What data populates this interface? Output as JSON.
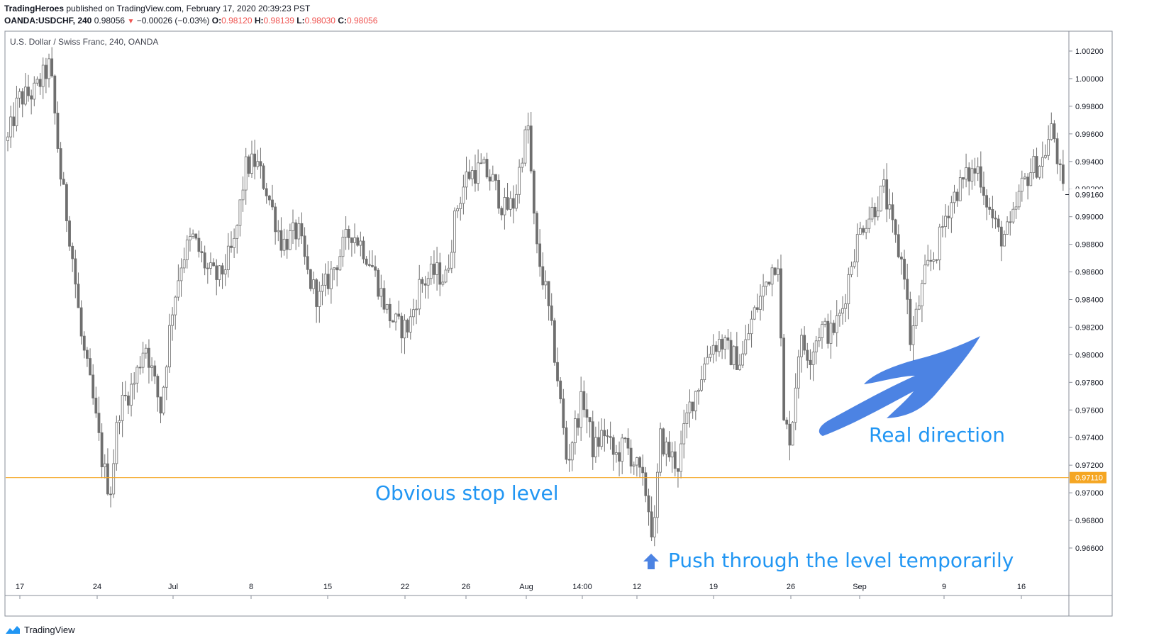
{
  "header": {
    "publisher": "TradingHeroes",
    "published_text": "published on TradingView.com, February 17, 2020 20:39:23 PST",
    "symbol": "OANDA:USDCHF, 240",
    "last": "0.98056",
    "change": "−0.00026 (−0.03%)",
    "o_label": "O:",
    "o_value": "0.98120",
    "h_label": "H:",
    "h_value": "0.98139",
    "l_label": "L:",
    "l_value": "0.98030",
    "c_label": "C:",
    "c_value": "0.98056"
  },
  "symbol_title": "U.S. Dollar / Swiss Franc, 240, OANDA",
  "footer": {
    "brand": "TradingView"
  },
  "colors": {
    "candle": "#6f6f6f",
    "stop_line": "#f5a623",
    "annotation": "#2196f3",
    "arrow": "#4c83e3",
    "current_price_bg": "#ffffff",
    "stop_label_bg": "#f5a623"
  },
  "chart_data": {
    "type": "candlestick",
    "title": "U.S. Dollar / Swiss Franc, 240, OANDA",
    "ylim": [
      0.965,
      1.003
    ],
    "y_ticks": [
      "1.00200",
      "1.00000",
      "0.99800",
      "0.99600",
      "0.99400",
      "0.99200",
      "0.99000",
      "0.98800",
      "0.98600",
      "0.98400",
      "0.98200",
      "0.98000",
      "0.97800",
      "0.97600",
      "0.97400",
      "0.97200",
      "0.97000",
      "0.96800",
      "0.96600"
    ],
    "x_ticks": [
      "17",
      "24",
      "Jul",
      "8",
      "15",
      "22",
      "26",
      "Aug",
      "14:00",
      "12",
      "19",
      "26",
      "Sep",
      "9",
      "16"
    ],
    "current_price": "0.99160",
    "stop_level": "0.97110",
    "approx_path_close": [
      [
        0,
        0.9955
      ],
      [
        0.01,
        0.9985
      ],
      [
        0.025,
        0.999
      ],
      [
        0.04,
        1.001
      ],
      [
        0.05,
        0.993
      ],
      [
        0.06,
        0.988
      ],
      [
        0.07,
        0.981
      ],
      [
        0.08,
        0.977
      ],
      [
        0.09,
        0.972
      ],
      [
        0.097,
        0.97
      ],
      [
        0.105,
        0.976
      ],
      [
        0.12,
        0.978
      ],
      [
        0.13,
        0.981
      ],
      [
        0.145,
        0.976
      ],
      [
        0.155,
        0.983
      ],
      [
        0.165,
        0.987
      ],
      [
        0.175,
        0.9885
      ],
      [
        0.19,
        0.986
      ],
      [
        0.2,
        0.9855
      ],
      [
        0.215,
        0.988
      ],
      [
        0.225,
        0.9935
      ],
      [
        0.235,
        0.994
      ],
      [
        0.245,
        0.992
      ],
      [
        0.26,
        0.988
      ],
      [
        0.275,
        0.989
      ],
      [
        0.285,
        0.9855
      ],
      [
        0.295,
        0.984
      ],
      [
        0.31,
        0.9865
      ],
      [
        0.325,
        0.989
      ],
      [
        0.335,
        0.988
      ],
      [
        0.345,
        0.9865
      ],
      [
        0.36,
        0.983
      ],
      [
        0.37,
        0.982
      ],
      [
        0.38,
        0.982
      ],
      [
        0.39,
        0.985
      ],
      [
        0.405,
        0.986
      ],
      [
        0.415,
        0.9855
      ],
      [
        0.425,
        0.9905
      ],
      [
        0.435,
        0.993
      ],
      [
        0.45,
        0.9935
      ],
      [
        0.46,
        0.9925
      ],
      [
        0.47,
        0.9905
      ],
      [
        0.48,
        0.991
      ],
      [
        0.488,
        0.995
      ],
      [
        0.493,
        0.9965
      ],
      [
        0.5,
        0.988
      ],
      [
        0.51,
        0.9845
      ],
      [
        0.52,
        0.979
      ],
      [
        0.53,
        0.972
      ],
      [
        0.535,
        0.974
      ],
      [
        0.545,
        0.977
      ],
      [
        0.555,
        0.973
      ],
      [
        0.565,
        0.9745
      ],
      [
        0.575,
        0.9725
      ],
      [
        0.585,
        0.9735
      ],
      [
        0.595,
        0.972
      ],
      [
        0.605,
        0.97
      ],
      [
        0.612,
        0.9665
      ],
      [
        0.618,
        0.974
      ],
      [
        0.625,
        0.973
      ],
      [
        0.635,
        0.972
      ],
      [
        0.645,
        0.976
      ],
      [
        0.655,
        0.978
      ],
      [
        0.665,
        0.9805
      ],
      [
        0.675,
        0.981
      ],
      [
        0.685,
        0.98
      ],
      [
        0.695,
        0.9795
      ],
      [
        0.705,
        0.9825
      ],
      [
        0.715,
        0.9845
      ],
      [
        0.725,
        0.9865
      ],
      [
        0.73,
        0.987
      ],
      [
        0.735,
        0.975
      ],
      [
        0.742,
        0.974
      ],
      [
        0.75,
        0.981
      ],
      [
        0.76,
        0.98
      ],
      [
        0.77,
        0.982
      ],
      [
        0.78,
        0.9815
      ],
      [
        0.79,
        0.983
      ],
      [
        0.8,
        0.987
      ],
      [
        0.81,
        0.9895
      ],
      [
        0.82,
        0.9905
      ],
      [
        0.83,
        0.992
      ],
      [
        0.84,
        0.9885
      ],
      [
        0.85,
        0.986
      ],
      [
        0.855,
        0.981
      ],
      [
        0.86,
        0.9825
      ],
      [
        0.87,
        0.986
      ],
      [
        0.88,
        0.9875
      ],
      [
        0.89,
        0.9905
      ],
      [
        0.9,
        0.992
      ],
      [
        0.91,
        0.993
      ],
      [
        0.92,
        0.9935
      ],
      [
        0.93,
        0.9905
      ],
      [
        0.94,
        0.9885
      ],
      [
        0.95,
        0.989
      ],
      [
        0.96,
        0.992
      ],
      [
        0.97,
        0.9935
      ],
      [
        0.98,
        0.994
      ],
      [
        0.99,
        0.9965
      ],
      [
        1.0,
        0.9916
      ]
    ]
  },
  "annotations": {
    "stop_text": "Obvious stop level",
    "push_text": "Push through the level temporarily",
    "real_text": "Real direction"
  }
}
